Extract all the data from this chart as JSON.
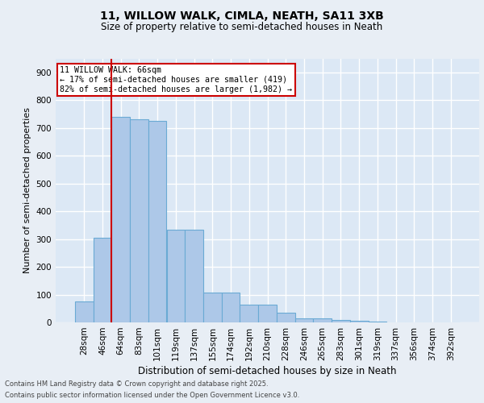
{
  "title1": "11, WILLOW WALK, CIMLA, NEATH, SA11 3XB",
  "title2": "Size of property relative to semi-detached houses in Neath",
  "xlabel": "Distribution of semi-detached houses by size in Neath",
  "ylabel": "Number of semi-detached properties",
  "categories": [
    "28sqm",
    "46sqm",
    "64sqm",
    "83sqm",
    "101sqm",
    "119sqm",
    "137sqm",
    "155sqm",
    "174sqm",
    "192sqm",
    "210sqm",
    "228sqm",
    "246sqm",
    "265sqm",
    "283sqm",
    "301sqm",
    "319sqm",
    "337sqm",
    "356sqm",
    "374sqm",
    "392sqm"
  ],
  "values": [
    75,
    305,
    740,
    730,
    725,
    335,
    335,
    108,
    108,
    65,
    65,
    35,
    15,
    15,
    10,
    5,
    2,
    1,
    0,
    0,
    0
  ],
  "bar_color": "#adc8e8",
  "bar_edge_color": "#6aaad4",
  "property_line_index": 2,
  "property_line_color": "#cc0000",
  "annotation_text": "11 WILLOW WALK: 66sqm\n← 17% of semi-detached houses are smaller (419)\n82% of semi-detached houses are larger (1,982) →",
  "annotation_box_color": "#ffffff",
  "annotation_box_edge_color": "#cc0000",
  "ylim": [
    0,
    950
  ],
  "yticks": [
    0,
    100,
    200,
    300,
    400,
    500,
    600,
    700,
    800,
    900
  ],
  "bg_color": "#dce8f5",
  "grid_color": "#ffffff",
  "fig_bg_color": "#e8eef5",
  "footer_line1": "Contains HM Land Registry data © Crown copyright and database right 2025.",
  "footer_line2": "Contains public sector information licensed under the Open Government Licence v3.0."
}
